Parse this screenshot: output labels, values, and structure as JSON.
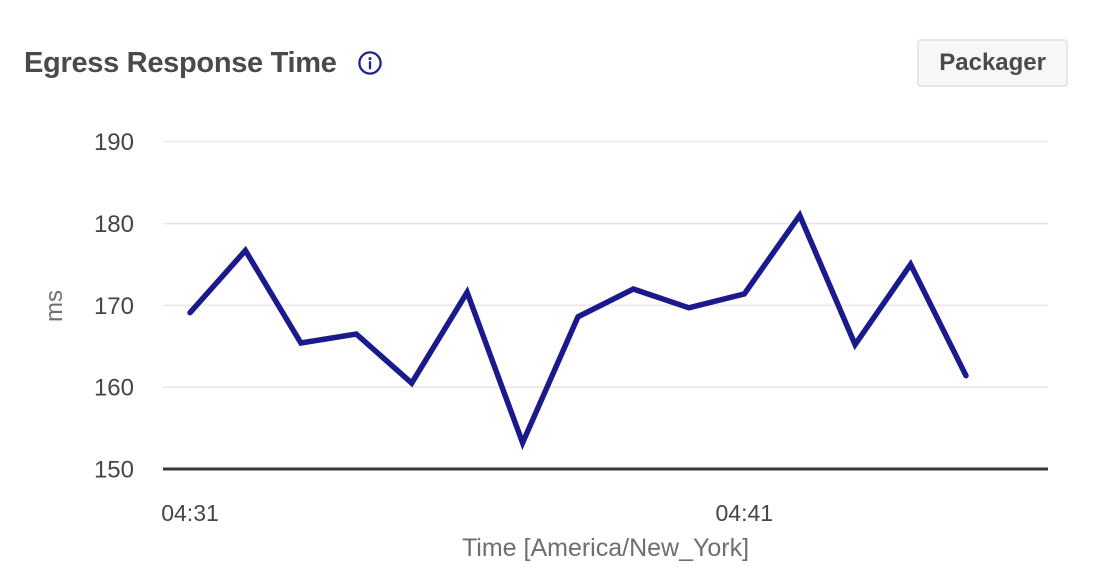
{
  "header": {
    "title": "Egress Response Time",
    "info_icon": "info-icon",
    "action_label": "Packager"
  },
  "colors": {
    "line": "#1a1a8c",
    "icon": "#22228e",
    "grid": "#e8e8e8",
    "axis": "#38383a",
    "tick_text": "#454545",
    "axis_label_text": "#6e6e6e"
  },
  "chart_data": {
    "type": "line",
    "title": "Egress Response Time",
    "series_name": "Packager",
    "x": [
      "04:31",
      "04:32",
      "04:33",
      "04:34",
      "04:35",
      "04:36",
      "04:37",
      "04:38",
      "04:39",
      "04:40",
      "04:41",
      "04:42",
      "04:43",
      "04:44",
      "04:45"
    ],
    "values": [
      169.1,
      176.7,
      165.4,
      166.5,
      160.5,
      171.6,
      153.2,
      168.6,
      172.0,
      169.7,
      171.4,
      181.0,
      165.2,
      175.0,
      161.4
    ],
    "ylabel": "ms",
    "xlabel": "Time [America/New_York]",
    "ylim": [
      150,
      190
    ],
    "yticks": [
      150,
      160,
      170,
      180,
      190
    ],
    "xtick_labels": [
      "04:31",
      "04:41"
    ],
    "xtick_indices": [
      0,
      10
    ],
    "grid": "horizontal",
    "legend": "none",
    "line_color": "#1a1a8c"
  }
}
